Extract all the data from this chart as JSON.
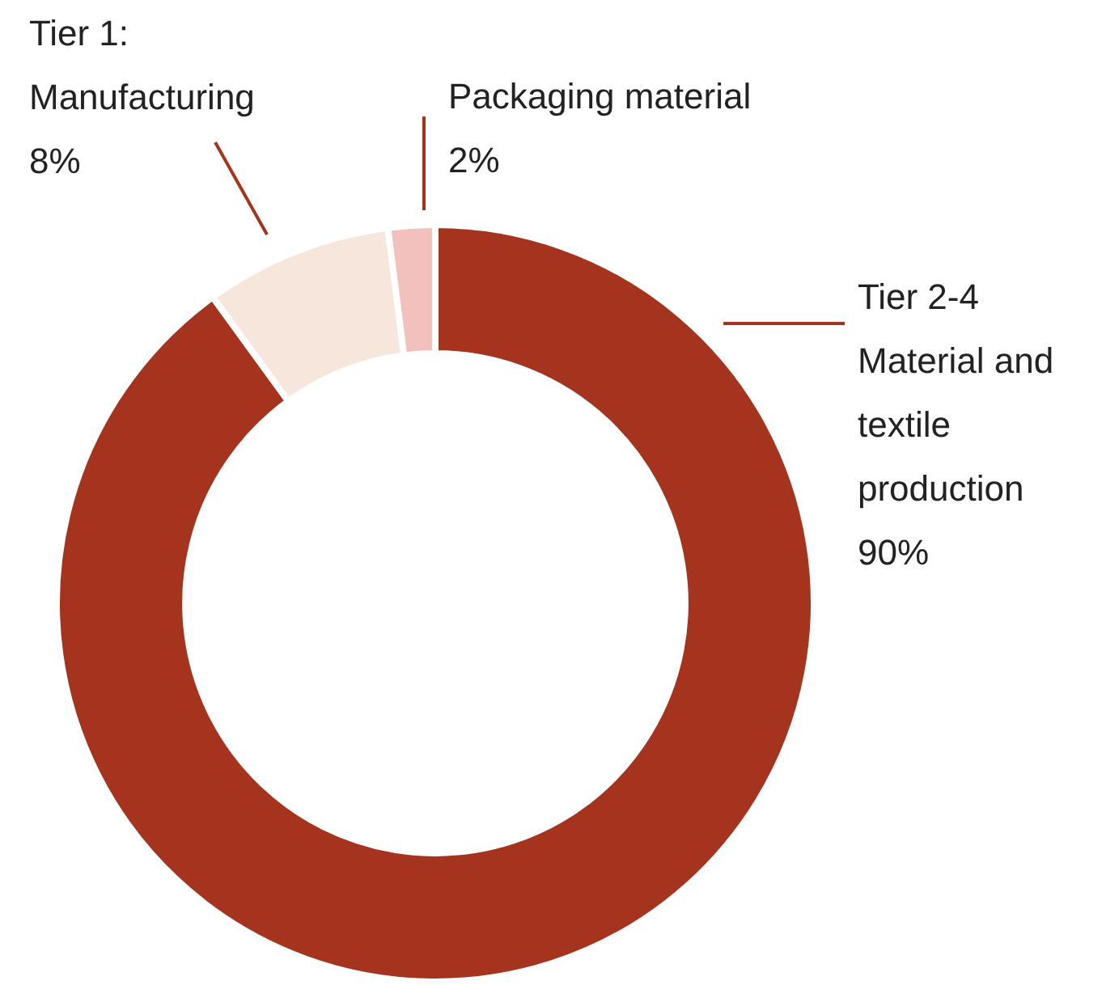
{
  "chart_data": {
    "type": "donut",
    "categories": [
      "Tier 2-4 Material and textile production",
      "Tier 1: Manufacturing",
      "Packaging material"
    ],
    "values": [
      90,
      8,
      2
    ],
    "value_labels": [
      "90%",
      "8%",
      "2%"
    ],
    "colors": [
      "#a5341f",
      "#f7e6dc",
      "#f2c0bd"
    ],
    "legend": false
  }
}
